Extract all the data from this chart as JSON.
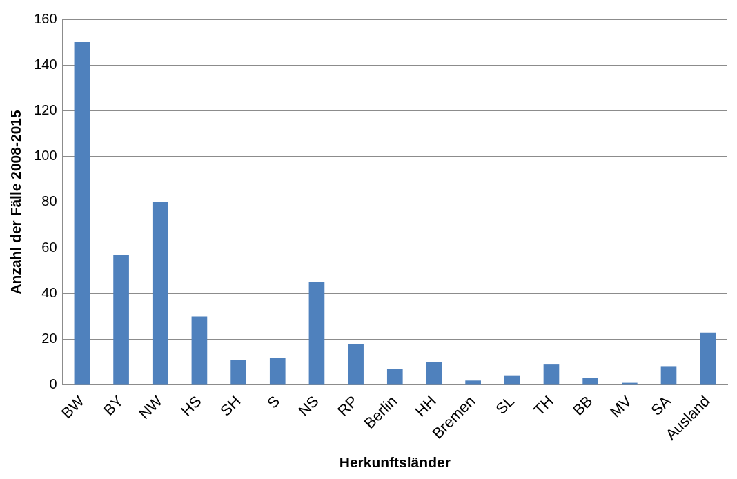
{
  "chart_data": {
    "type": "bar",
    "xlabel": "Herkunftsländer",
    "ylabel": "Anzahl der Fälle 2008-2015",
    "categories": [
      "BW",
      "BY",
      "NW",
      "HS",
      "SH",
      "S",
      "NS",
      "RP",
      "Berlin",
      "HH",
      "Bremen",
      "SL",
      "TH",
      "BB",
      "MV",
      "SA",
      "Ausland"
    ],
    "values": [
      150,
      57,
      80,
      30,
      11,
      12,
      45,
      18,
      7,
      10,
      2,
      4,
      9,
      3,
      1,
      8,
      23
    ],
    "color": "#4f81bd",
    "ylim": [
      0,
      160
    ],
    "yticks": [
      0,
      20,
      40,
      60,
      80,
      100,
      120,
      140,
      160
    ],
    "grid": "y",
    "legend": false
  }
}
